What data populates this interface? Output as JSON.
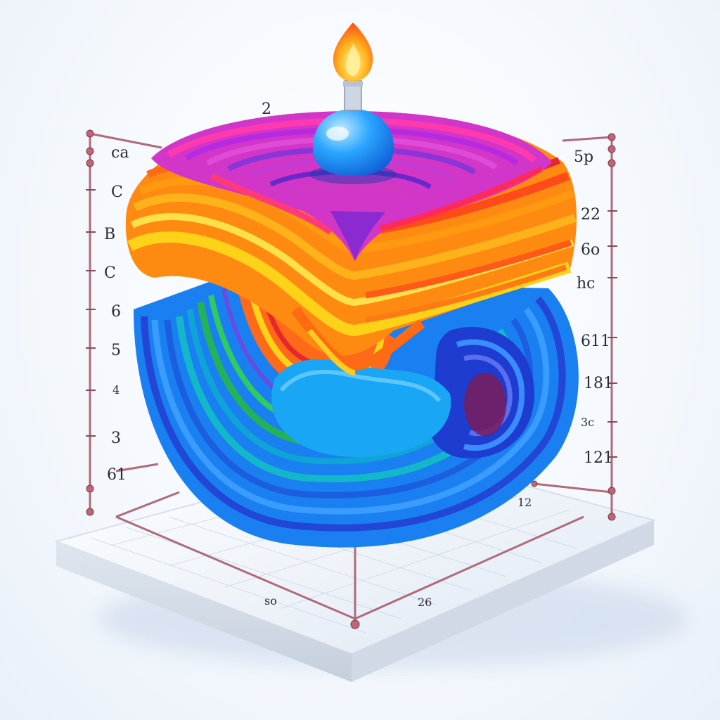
{
  "scene": {
    "subject": "rainbow-layered-3d-surface",
    "palette": {
      "red": "#e8262d",
      "orange": "#ff8a12",
      "yellow": "#ffd21a",
      "magenta": "#d236c8",
      "purple": "#8a35d8",
      "green": "#22b35a",
      "teal": "#12b8c9",
      "blue": "#1a7ff0",
      "deep_blue": "#2246d6",
      "flame": "#ff9a1a",
      "glass": "#2aa6ff",
      "axis": "#b06a7a"
    }
  },
  "labels": {
    "top": "2",
    "left": [
      "ca",
      "C",
      "B",
      "C",
      "6",
      "5",
      "4",
      "3",
      "61"
    ],
    "right": [
      "5p",
      "22",
      "6o",
      "hc",
      "611",
      "181",
      "3c",
      "121"
    ],
    "base": [
      "so",
      "26",
      "12"
    ]
  }
}
